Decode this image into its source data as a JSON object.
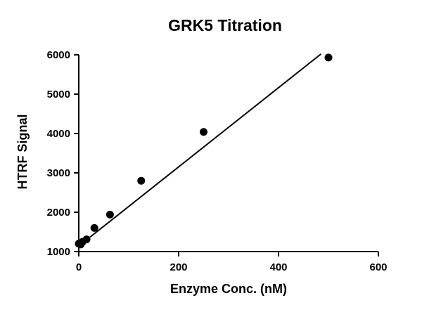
{
  "chart_data": {
    "type": "scatter",
    "title": "GRK5 Titration",
    "xlabel": "Enzyme Conc. (nM)",
    "ylabel": "HTRF Signal",
    "xlim": [
      0,
      600
    ],
    "ylim": [
      1000,
      6000
    ],
    "xticks": [
      0,
      200,
      400,
      600
    ],
    "yticks": [
      1000,
      2000,
      3000,
      4000,
      5000,
      6000
    ],
    "grid": false,
    "legend": "none",
    "series": [
      {
        "x": [
          0,
          3.9,
          7.8,
          15.6,
          31.25,
          62.5,
          125,
          250,
          500
        ],
        "y": [
          1200,
          1180,
          1250,
          1310,
          1600,
          1940,
          2800,
          4040,
          5930
        ],
        "marker_color": "#000000"
      }
    ],
    "fit_line": {
      "x": [
        0,
        485
      ],
      "y": [
        1140,
        6020
      ],
      "color": "#000000"
    }
  }
}
